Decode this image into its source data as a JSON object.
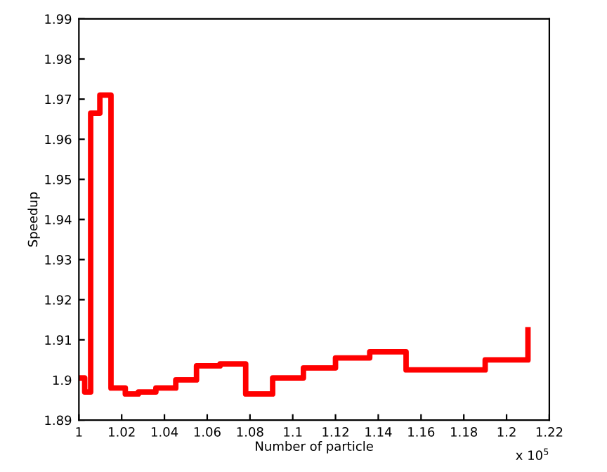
{
  "chart_data": {
    "type": "step",
    "xlabel": "Number of particle",
    "ylabel": "Speedup",
    "x": [
      1.0015,
      1.0027,
      1.0055,
      1.0098,
      1.015,
      1.0217,
      1.0278,
      1.036,
      1.0453,
      1.055,
      1.066,
      1.078,
      1.0906,
      1.105,
      1.12,
      1.136,
      1.153,
      1.19,
      1.21
    ],
    "series": [
      {
        "color": "#ff0000",
        "values": [
          1.9005,
          1.897,
          1.9665,
          1.971,
          1.898,
          1.8965,
          1.897,
          1.898,
          1.9,
          1.9035,
          1.904,
          1.8965,
          1.9005,
          1.903,
          1.9055,
          1.907,
          1.9025,
          1.905,
          1.9125
        ]
      }
    ],
    "xlim": [
      1,
      1.22
    ],
    "xticks": [
      1,
      1.02,
      1.04,
      1.06,
      1.08,
      1.1,
      1.12,
      1.14,
      1.16,
      1.18,
      1.2,
      1.22
    ],
    "ylim": [
      1.89,
      1.99
    ],
    "yticks": [
      1.89,
      1.9,
      1.91,
      1.92,
      1.93,
      1.94,
      1.95,
      1.96,
      1.97,
      1.98,
      1.99
    ],
    "annotations": [
      "x 10$^{5}$"
    ],
    "grid": false,
    "legend": false,
    "line_style": "solid",
    "marker": "none"
  }
}
